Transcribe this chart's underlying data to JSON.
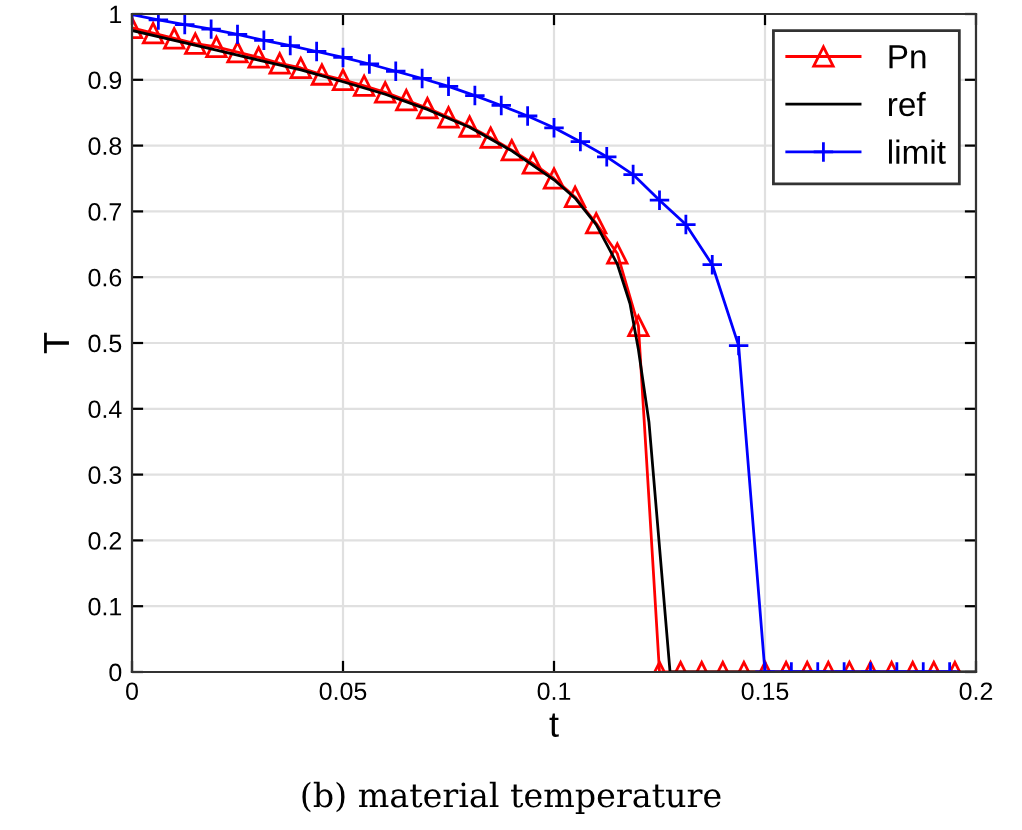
{
  "chart_data": {
    "type": "line",
    "xlabel": "t",
    "ylabel": "T",
    "annotations": [
      "(b) material temperature"
    ],
    "xlim": [
      0,
      0.2
    ],
    "ylim": [
      0,
      1
    ],
    "xticks": [
      0,
      0.05,
      0.1,
      0.15,
      0.2
    ],
    "yticks": [
      0,
      0.1,
      0.2,
      0.3,
      0.4,
      0.5,
      0.6,
      0.7,
      0.8,
      0.9,
      1
    ],
    "grid": true,
    "legend": "top right",
    "series": [
      {
        "name": "Pn",
        "color": "#ff0000",
        "marker": "triangle",
        "x": [
          0,
          0.005,
          0.01,
          0.015,
          0.02,
          0.025,
          0.03,
          0.035,
          0.04,
          0.045,
          0.05,
          0.055,
          0.06,
          0.065,
          0.07,
          0.075,
          0.08,
          0.085,
          0.09,
          0.095,
          0.1,
          0.105,
          0.11,
          0.115,
          0.12,
          0.125,
          0.13,
          0.135,
          0.14,
          0.145,
          0.15,
          0.155,
          0.16,
          0.165,
          0.17,
          0.175,
          0.18,
          0.185,
          0.19,
          0.195
        ],
        "values": [
          0.979,
          0.971,
          0.963,
          0.955,
          0.95,
          0.942,
          0.934,
          0.925,
          0.918,
          0.908,
          0.9,
          0.891,
          0.881,
          0.869,
          0.857,
          0.843,
          0.829,
          0.812,
          0.793,
          0.773,
          0.75,
          0.722,
          0.682,
          0.636,
          0.526,
          0,
          0,
          0,
          0,
          0,
          0,
          0,
          0,
          0,
          0,
          0,
          0,
          0,
          0,
          0
        ]
      },
      {
        "name": "ref",
        "color": "#000000",
        "marker": "none",
        "x": [
          0,
          0.01,
          0.02,
          0.03,
          0.04,
          0.05,
          0.06,
          0.07,
          0.08,
          0.09,
          0.1,
          0.105,
          0.11,
          0.115,
          0.118,
          0.12,
          0.1225,
          0.1275,
          0.2
        ],
        "values": [
          0.975,
          0.96,
          0.945,
          0.93,
          0.915,
          0.897,
          0.878,
          0.855,
          0.828,
          0.792,
          0.748,
          0.72,
          0.68,
          0.62,
          0.56,
          0.49,
          0.38,
          0,
          0
        ]
      },
      {
        "name": "limit",
        "color": "#0000ff",
        "marker": "cross",
        "x": [
          0,
          0.00625,
          0.0125,
          0.01875,
          0.025,
          0.03125,
          0.0375,
          0.04375,
          0.05,
          0.05625,
          0.0625,
          0.06875,
          0.075,
          0.08125,
          0.0875,
          0.09375,
          0.1,
          0.10625,
          0.1125,
          0.11875,
          0.125,
          0.13125,
          0.1375,
          0.14375,
          0.15,
          0.15625,
          0.1625,
          0.16875,
          0.175,
          0.18125,
          0.1875,
          0.19375
        ],
        "values": [
          0.999,
          0.991,
          0.984,
          0.977,
          0.969,
          0.96,
          0.952,
          0.943,
          0.934,
          0.924,
          0.913,
          0.902,
          0.89,
          0.876,
          0.861,
          0.845,
          0.827,
          0.806,
          0.783,
          0.756,
          0.717,
          0.68,
          0.619,
          0.496,
          0,
          0,
          0,
          0,
          0,
          0,
          0,
          0
        ]
      }
    ]
  }
}
